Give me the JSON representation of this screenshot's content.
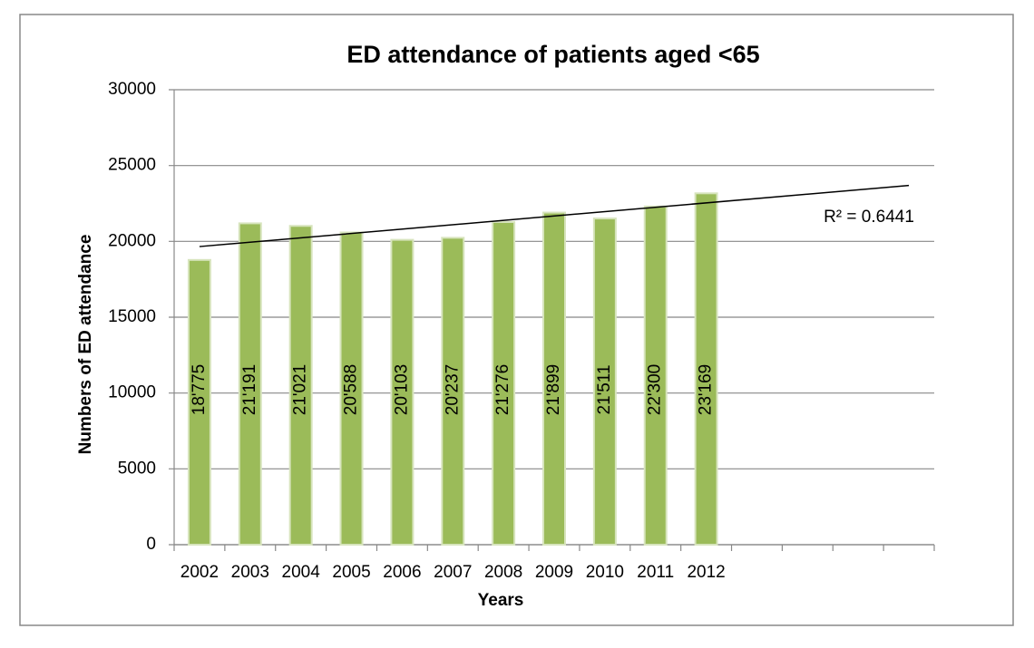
{
  "chart_data": {
    "type": "bar",
    "title": "ED attendance of patients aged <65",
    "x_label": "Years",
    "y_label": "Numbers of ED attendance",
    "categories": [
      "2002",
      "2003",
      "2004",
      "2005",
      "2006",
      "2007",
      "2008",
      "2009",
      "2010",
      "2011",
      "2012",
      null,
      null,
      null,
      null
    ],
    "values": [
      18775,
      21191,
      21021,
      20588,
      20103,
      20237,
      21276,
      21899,
      21511,
      22300,
      23169,
      null,
      null,
      null,
      null
    ],
    "value_labels": [
      "18'775",
      "21'191",
      "21'021",
      "20'588",
      "20'103",
      "20'237",
      "21'276",
      "21'899",
      "21'511",
      "22'300",
      "23'169",
      null,
      null,
      null,
      null
    ],
    "color": "#9bbb59",
    "ylim": [
      0,
      30000
    ],
    "yticks": [
      0,
      5000,
      10000,
      15000,
      20000,
      25000,
      30000
    ],
    "grid": true,
    "trendline": "linear",
    "annotation": "R² = 0.6441"
  }
}
